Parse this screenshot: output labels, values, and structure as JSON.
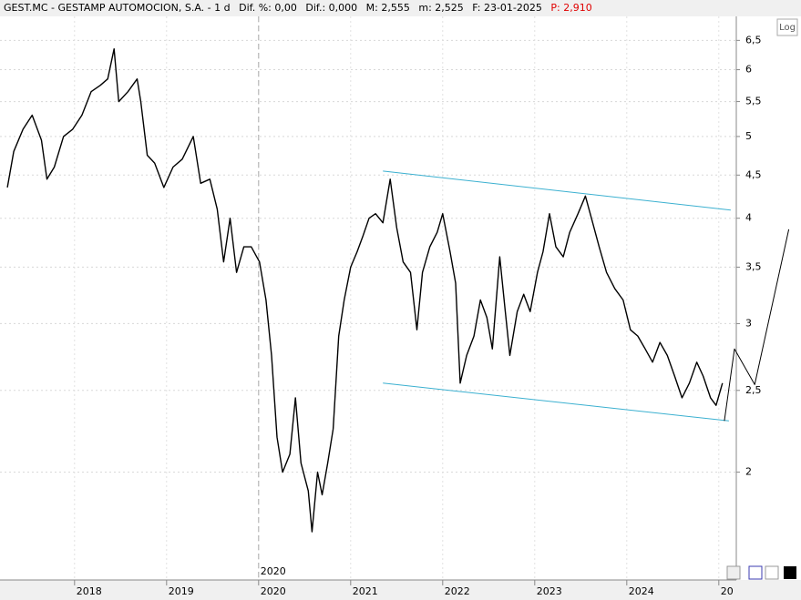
{
  "chart_data": {
    "type": "line",
    "title": "GEST.MC - GESTAMP AUTOMOCION, S.A. - 1 d",
    "stats": [
      "Dif. %: 0,00",
      "Dif.: 0,000",
      "M: 2,555",
      "m: 2,525",
      "F: 23-01-2025"
    ],
    "last": "P: 2,910",
    "scale_button": "Log",
    "log": true,
    "grid": true,
    "marker_label": "2020",
    "marker_x": 2020.0,
    "xlim": [
      2017.19,
      2025.19
    ],
    "xticks": [
      2018,
      2019,
      2020,
      2021,
      2022,
      2023,
      2024,
      {
        "value": 2025,
        "label": "20"
      }
    ],
    "ylim": [
      1.49,
      6.94
    ],
    "yticks": [
      {
        "value": 2,
        "label": "2"
      },
      {
        "value": 2.5,
        "label": "2,5"
      },
      {
        "value": 3,
        "label": "3"
      },
      {
        "value": 3.5,
        "label": "3,5"
      },
      {
        "value": 4,
        "label": "4"
      },
      {
        "value": 4.5,
        "label": "4,5"
      },
      {
        "value": 5,
        "label": "5"
      },
      {
        "value": 5.5,
        "label": "5,5"
      },
      {
        "value": 6,
        "label": "6"
      },
      {
        "value": 6.5,
        "label": "6,5"
      }
    ],
    "series": [
      {
        "color": "#000000",
        "x": [
          2017.27,
          2017.34,
          2017.44,
          2017.54,
          2017.64,
          2017.7,
          2017.78,
          2017.88,
          2017.98,
          2018.08,
          2018.18,
          2018.28,
          2018.36,
          2018.43,
          2018.48,
          2018.58,
          2018.68,
          2018.72,
          2018.79,
          2018.87,
          2018.97,
          2019.07,
          2019.17,
          2019.29,
          2019.37,
          2019.47,
          2019.55,
          2019.62,
          2019.69,
          2019.76,
          2019.84,
          2019.92,
          2020.01,
          2020.08,
          2020.14,
          2020.2,
          2020.26,
          2020.34,
          2020.4,
          2020.46,
          2020.54,
          2020.58,
          2020.64,
          2020.69,
          2020.75,
          2020.81,
          2020.87,
          2020.93,
          2021.0,
          2021.07,
          2021.13,
          2021.2,
          2021.27,
          2021.35,
          2021.43,
          2021.5,
          2021.57,
          2021.65,
          2021.72,
          2021.78,
          2021.86,
          2021.94,
          2022.0,
          2022.08,
          2022.14,
          2022.19,
          2022.26,
          2022.34,
          2022.41,
          2022.48,
          2022.54,
          2022.62,
          2022.68,
          2022.73,
          2022.81,
          2022.88,
          2022.95,
          2023.03,
          2023.09,
          2023.16,
          2023.23,
          2023.31,
          2023.38,
          2023.47,
          2023.55,
          2023.63,
          2023.7,
          2023.78,
          2023.87,
          2023.96,
          2024.04,
          2024.12,
          2024.2,
          2024.28,
          2024.36,
          2024.44,
          2024.52,
          2024.6,
          2024.68,
          2024.76,
          2024.83,
          2024.91,
          2024.97,
          2025.04
        ],
        "values": [
          4.35,
          4.8,
          5.1,
          5.3,
          4.95,
          4.45,
          4.6,
          5.0,
          5.1,
          5.3,
          5.65,
          5.75,
          5.85,
          6.35,
          5.5,
          5.65,
          5.85,
          5.5,
          4.75,
          4.65,
          4.35,
          4.6,
          4.7,
          5.0,
          4.4,
          4.45,
          4.1,
          3.55,
          4.0,
          3.45,
          3.7,
          3.7,
          3.55,
          3.2,
          2.75,
          2.2,
          2.0,
          2.1,
          2.45,
          2.05,
          1.9,
          1.7,
          2.0,
          1.88,
          2.05,
          2.25,
          2.9,
          3.2,
          3.5,
          3.65,
          3.8,
          4.0,
          4.05,
          3.95,
          4.45,
          3.9,
          3.55,
          3.45,
          2.95,
          3.45,
          3.7,
          3.85,
          4.05,
          3.65,
          3.35,
          2.55,
          2.75,
          2.9,
          3.2,
          3.05,
          2.8,
          3.6,
          3.1,
          2.75,
          3.1,
          3.25,
          3.1,
          3.45,
          3.65,
          4.05,
          3.7,
          3.6,
          3.85,
          4.05,
          4.25,
          3.95,
          3.7,
          3.45,
          3.3,
          3.2,
          2.95,
          2.9,
          2.8,
          2.7,
          2.85,
          2.75,
          2.6,
          2.45,
          2.55,
          2.7,
          2.6,
          2.45,
          2.4,
          2.55
        ]
      }
    ],
    "overlays": [
      {
        "color": "#3bb0d0",
        "x": [
          2021.35,
          2025.13
        ],
        "values": [
          4.55,
          4.09
        ]
      },
      {
        "color": "#3bb0d0",
        "x": [
          2021.35,
          2025.11
        ],
        "values": [
          2.55,
          2.3
        ]
      },
      {
        "color": "#000000",
        "x": [
          2025.06,
          2025.17,
          2025.39,
          2025.76
        ],
        "values": [
          2.3,
          2.8,
          2.54,
          3.88
        ]
      }
    ]
  }
}
